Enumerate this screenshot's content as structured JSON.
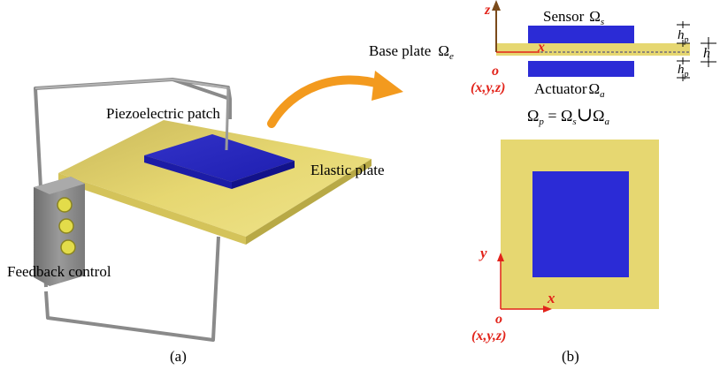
{
  "labels": {
    "piezo_patch": "Piezoelectric patch",
    "elastic_plate": "Elastic plate",
    "feedback_control": "Feedback control",
    "panel_a": "(a)",
    "panel_b": "(b)",
    "base_plate": "Base plate",
    "sensor": "Sensor",
    "actuator": "Actuator",
    "omega": "Ω",
    "sub_e": "e",
    "sub_s": "s",
    "sub_a": "a",
    "sub_p": "p",
    "union_eq_left": "Ω",
    "union_eq_mid": " = Ω",
    "union_symbol": "∪",
    "union_eq_right": "Ω",
    "h": "h",
    "hp": "h"
  },
  "axes_side": {
    "z": "z",
    "x": "x",
    "origin": "o",
    "coords": "(x,y,z)"
  },
  "axes_top": {
    "y": "y",
    "x": "x",
    "origin": "o",
    "coords": "(x,y,z)"
  },
  "colors": {
    "plate": "#e6d771",
    "patch": "#2b2bd6",
    "frame": "#8a8a8a",
    "arrow": "#f39a1e",
    "axis_red": "#e2231a",
    "axis_z": "#7a4a1a"
  }
}
